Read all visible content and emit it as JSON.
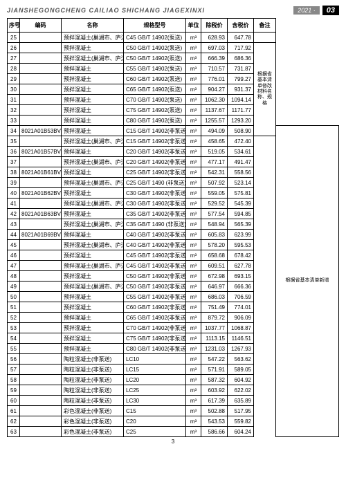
{
  "header": {
    "title_pinyin": "JIANSHEGONGCHENG CAILIAO SHICHANG JIAGEXINXI",
    "year": "2021 ·",
    "issue": "03"
  },
  "columns": {
    "seq": "序号",
    "code": "编码",
    "name": "名称",
    "spec": "规格型号",
    "unit": "单位",
    "price_ex": "除税价",
    "price_in": "含税价",
    "note": "备注"
  },
  "note_group1": "根据省基本清单修改材料名称、规格",
  "note_group2": "根据省基本清单新增",
  "rows": [
    {
      "seq": "25",
      "code": "",
      "name": "预拌混凝土(巢湖市、庐江县)",
      "spec": "C45  GB/T 14902(泵送)",
      "unit": "m³",
      "p1": "628.93",
      "p2": "647.78",
      "note": ""
    },
    {
      "seq": "26",
      "code": "",
      "name": "预拌混凝土",
      "spec": "C50  GB/T 14902(泵送)",
      "unit": "m³",
      "p1": "697.03",
      "p2": "717.92",
      "note_span": 9,
      "note_key": "note_group1"
    },
    {
      "seq": "27",
      "code": "",
      "name": "预拌混凝土(巢湖市、庐江县)",
      "spec": "C50  GB/T 14902(泵送)",
      "unit": "m³",
      "p1": "666.39",
      "p2": "686.36"
    },
    {
      "seq": "28",
      "code": "",
      "name": "预拌混凝土",
      "spec": "C55  GB/T 14902(泵送)",
      "unit": "m³",
      "p1": "710.57",
      "p2": "731.87"
    },
    {
      "seq": "29",
      "code": "",
      "name": "预拌混凝土",
      "spec": "C60  GB/T 14902(泵送)",
      "unit": "m³",
      "p1": "776.01",
      "p2": "799.27"
    },
    {
      "seq": "30",
      "code": "",
      "name": "预拌混凝土",
      "spec": "C65  GB/T 14902(泵送)",
      "unit": "m³",
      "p1": "904.27",
      "p2": "931.37"
    },
    {
      "seq": "31",
      "code": "",
      "name": "预拌混凝土",
      "spec": "C70  GB/T 14902(泵送)",
      "unit": "m³",
      "p1": "1062.30",
      "p2": "1094.14"
    },
    {
      "seq": "32",
      "code": "",
      "name": "预拌混凝土",
      "spec": "C75  GB/T 14902(泵送)",
      "unit": "m³",
      "p1": "1137.67",
      "p2": "1171.77"
    },
    {
      "seq": "33",
      "code": "",
      "name": "预拌混凝土",
      "spec": "C80  GB/T 14902(泵送)",
      "unit": "m³",
      "p1": "1255.57",
      "p2": "1293.20"
    },
    {
      "seq": "34",
      "code": "8021A01B53BV",
      "name": "预拌混凝土",
      "spec": "C15  GB/T 14902(非泵送)",
      "unit": "m³",
      "p1": "494.09",
      "p2": "508.90",
      "note_span": 30,
      "note_key": "note_group2"
    },
    {
      "seq": "35",
      "code": "",
      "name": "预拌混凝土(巢湖市、庐江县)",
      "spec": "C15  GB/T 14902(非泵送)",
      "unit": "m³",
      "p1": "458.65",
      "p2": "472.40"
    },
    {
      "seq": "36",
      "code": "8021A01B57BV",
      "name": "预拌混凝土",
      "spec": "C20  GB/T 14902(非泵送)",
      "unit": "m³",
      "p1": "519.05",
      "p2": "534.61"
    },
    {
      "seq": "37",
      "code": "",
      "name": "预拌混凝土(巢湖市、庐江县)",
      "spec": "C20  GB/T 14902(非泵送)",
      "unit": "m³",
      "p1": "477.17",
      "p2": "491.47"
    },
    {
      "seq": "38",
      "code": "8021A01B61BV",
      "name": "预拌混凝土",
      "spec": "C25  GB/T 14902(非泵送)",
      "unit": "m³",
      "p1": "542.31",
      "p2": "558.56"
    },
    {
      "seq": "39",
      "code": "",
      "name": "预拌混凝土(巢湖市、庐江县)",
      "spec": "C25  GB/T 1490 (非泵送)",
      "unit": "m³",
      "p1": "507.92",
      "p2": "523.14"
    },
    {
      "seq": "40",
      "code": "8021A01B62BV",
      "name": "预拌混凝土",
      "spec": "C30  GB/T 14902(非泵送)",
      "unit": "m³",
      "p1": "559.05",
      "p2": "575.81"
    },
    {
      "seq": "41",
      "code": "",
      "name": "预拌混凝土(巢湖市、庐江县)",
      "spec": "C30  GB/T 14902(非泵送)",
      "unit": "m³",
      "p1": "529.52",
      "p2": "545.39"
    },
    {
      "seq": "42",
      "code": "8021A01B63BV",
      "name": "预拌混凝土",
      "spec": "C35  GB/T 14902(非泵送)",
      "unit": "m³",
      "p1": "577.54",
      "p2": "594.85"
    },
    {
      "seq": "43",
      "code": "",
      "name": "预拌混凝土(巢湖市、庐江县)",
      "spec": "C35  GB/T 1490 (非泵送)",
      "unit": "m³",
      "p1": "548.94",
      "p2": "565.39"
    },
    {
      "seq": "44",
      "code": "8021A01B69BV",
      "name": "预拌混凝土",
      "spec": "C40  GB/T 14902(非泵送)",
      "unit": "m³",
      "p1": "605.83",
      "p2": "623.99"
    },
    {
      "seq": "45",
      "code": "",
      "name": "预拌混凝土(巢湖市、庐江县)",
      "spec": "C40  GB/T 14902(非泵送)",
      "unit": "m³",
      "p1": "578.20",
      "p2": "595.53"
    },
    {
      "seq": "46",
      "code": "",
      "name": "预拌混凝土",
      "spec": "C45  GB/T 14902(非泵送)",
      "unit": "m³",
      "p1": "658.68",
      "p2": "678.42"
    },
    {
      "seq": "47",
      "code": "",
      "name": "预拌混凝土(巢湖市、庐江县)",
      "spec": "C45  GB/T 14902(非泵送)",
      "unit": "m³",
      "p1": "609.51",
      "p2": "627.78"
    },
    {
      "seq": "48",
      "code": "",
      "name": "预拌混凝土",
      "spec": "C50  GB/T 14902(非泵送)",
      "unit": "m³",
      "p1": "672.98",
      "p2": "693.15"
    },
    {
      "seq": "49",
      "code": "",
      "name": "预拌混凝土(巢湖市、庐江县)",
      "spec": "C50  GB/T 14902(非泵送)",
      "unit": "m³",
      "p1": "646.97",
      "p2": "666.36"
    },
    {
      "seq": "50",
      "code": "",
      "name": "预拌混凝土",
      "spec": "C55  GB/T 14902(非泵送)",
      "unit": "m³",
      "p1": "686.03",
      "p2": "706.59"
    },
    {
      "seq": "51",
      "code": "",
      "name": "预拌混凝土",
      "spec": "C60  GB/T 14902(非泵送)",
      "unit": "m³",
      "p1": "751.49",
      "p2": "774.01"
    },
    {
      "seq": "52",
      "code": "",
      "name": "预拌混凝土",
      "spec": "C65  GB/T 14902(非泵送)",
      "unit": "m³",
      "p1": "879.72",
      "p2": "906.09"
    },
    {
      "seq": "53",
      "code": "",
      "name": "预拌混凝土",
      "spec": "C70  GB/T 14902(非泵送)",
      "unit": "m³",
      "p1": "1037.77",
      "p2": "1068.87"
    },
    {
      "seq": "54",
      "code": "",
      "name": "预拌混凝土",
      "spec": "C75  GB/T 14902(非泵送)",
      "unit": "m³",
      "p1": "1113.15",
      "p2": "1146.51"
    },
    {
      "seq": "55",
      "code": "",
      "name": "预拌混凝土",
      "spec": "C80  GB/T 14902(非泵送)",
      "unit": "m³",
      "p1": "1231.03",
      "p2": "1267.93"
    },
    {
      "seq": "56",
      "code": "",
      "name": "陶粒混凝土(非泵送)",
      "spec": "LC10",
      "unit": "m³",
      "p1": "547.22",
      "p2": "563.62"
    },
    {
      "seq": "57",
      "code": "",
      "name": "陶粒混凝土(非泵送)",
      "spec": "LC15",
      "unit": "m³",
      "p1": "571.91",
      "p2": "589.05"
    },
    {
      "seq": "58",
      "code": "",
      "name": "陶粒混凝土(非泵送)",
      "spec": "LC20",
      "unit": "m³",
      "p1": "587.32",
      "p2": "604.92"
    },
    {
      "seq": "59",
      "code": "",
      "name": "陶粒混凝土(非泵送)",
      "spec": "LC25",
      "unit": "m³",
      "p1": "603.92",
      "p2": "622.02"
    },
    {
      "seq": "60",
      "code": "",
      "name": "陶粒混凝土(非泵送)",
      "spec": "LC30",
      "unit": "m³",
      "p1": "617.39",
      "p2": "635.89"
    },
    {
      "seq": "61",
      "code": "",
      "name": "彩色混凝土(非泵送)",
      "spec": "C15",
      "unit": "m³",
      "p1": "502.88",
      "p2": "517.95"
    },
    {
      "seq": "62",
      "code": "",
      "name": "彩色混凝土(非泵送)",
      "spec": "C20",
      "unit": "m³",
      "p1": "543.53",
      "p2": "559.82"
    },
    {
      "seq": "63",
      "code": "",
      "name": "彩色混凝土(非泵送)",
      "spec": "C25",
      "unit": "m³",
      "p1": "586.66",
      "p2": "604.24"
    }
  ],
  "footer": "3"
}
